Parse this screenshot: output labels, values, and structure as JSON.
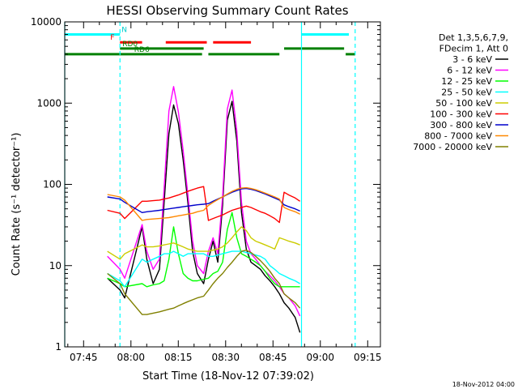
{
  "chart_data": {
    "type": "line",
    "title": "HESSI Observing Summary Count Rates",
    "xlabel": "Start Time (18-Nov-12 07:39:02)",
    "ylabel": "Count Rate (s⁻¹ detector⁻¹)",
    "x_unit": "minutes after 07:39:02",
    "xlim": [
      0,
      100
    ],
    "ylim": [
      1,
      10000
    ],
    "yscale": "log",
    "x_tick_labels": [
      "07:45",
      "08:00",
      "08:15",
      "08:30",
      "08:45",
      "09:00",
      "09:15"
    ],
    "y_tick_labels": [
      "1",
      "10",
      "100",
      "1000",
      "10000"
    ],
    "legend": {
      "placement": "right",
      "header": [
        "Det 1,3,5,6,7,9,",
        "FDecim 1, Att 0"
      ]
    },
    "footer_stamp": "18-Nov-2012 04:00",
    "flag_bars": [
      {
        "label": "N",
        "color": "#00ffff",
        "y": 7000,
        "segments": [
          [
            0,
            17.5
          ],
          [
            75,
            90
          ]
        ]
      },
      {
        "label": "F",
        "color": "#ff0000",
        "y": 5600,
        "segments": [
          [
            17.5,
            24.5
          ],
          [
            32,
            45
          ],
          [
            47,
            59
          ]
        ]
      },
      {
        "label": "RD0",
        "color": "#008000",
        "y": 4700,
        "segments": [
          [
            17.5,
            44
          ],
          [
            69.5,
            88.5
          ]
        ]
      },
      {
        "label": "RD6",
        "color": "#008000",
        "y": 4000,
        "segments": [
          [
            0,
            43.5
          ],
          [
            45.5,
            68
          ],
          [
            89,
            92
          ]
        ]
      }
    ],
    "vertical_lines": [
      {
        "x": 0,
        "style": "solid",
        "color": "#00ffff"
      },
      {
        "x": 17.5,
        "style": "dashed",
        "color": "#00ffff"
      },
      {
        "x": 75,
        "style": "solid",
        "color": "#00ffff"
      },
      {
        "x": 92,
        "style": "dashed",
        "color": "#00ffff"
      }
    ],
    "series": [
      {
        "name": "3 - 6 keV",
        "color": "#000000",
        "x": [
          13.5,
          17.5,
          19,
          24.5,
          26,
          28,
          30,
          31.5,
          33,
          34.5,
          36,
          37.5,
          39,
          40.5,
          42,
          44,
          45.5,
          47,
          48.5,
          50,
          51.5,
          53,
          54.5,
          56,
          57.5,
          59,
          60.5,
          62,
          63.5,
          65,
          66.5,
          68,
          69.5,
          71,
          73,
          74.5
        ],
        "values": [
          7,
          5,
          4,
          30,
          12,
          6,
          9,
          60,
          420,
          950,
          560,
          200,
          60,
          15,
          8,
          6,
          12,
          20,
          11,
          55,
          620,
          1050,
          340,
          45,
          16,
          11,
          10,
          9,
          7.5,
          6.5,
          5.5,
          4.5,
          3.5,
          3,
          2.3,
          1.5
        ]
      },
      {
        "name": "6 - 12 keV",
        "color": "#ff00ff",
        "x": [
          13.5,
          17.5,
          19,
          24.5,
          26,
          28,
          30,
          31.5,
          33,
          34.5,
          36,
          37.5,
          39,
          40.5,
          42,
          44,
          45.5,
          47,
          48.5,
          50,
          51.5,
          53,
          54.5,
          56,
          57.5,
          59,
          60.5,
          62,
          63.5,
          65,
          66.5,
          68,
          69.5,
          71,
          73,
          74.5
        ],
        "values": [
          13,
          9,
          7,
          32,
          15,
          9,
          12,
          90,
          800,
          1600,
          780,
          260,
          75,
          20,
          10,
          8,
          15,
          22,
          14,
          70,
          850,
          1450,
          450,
          60,
          20,
          14,
          12,
          10,
          8.5,
          7.5,
          6.5,
          5.5,
          4.5,
          4,
          3.2,
          2.4
        ]
      },
      {
        "name": "12 - 25 keV",
        "color": "#00ff00",
        "x": [
          13.5,
          17.5,
          19,
          24.5,
          26,
          28,
          30,
          31.5,
          33,
          34.5,
          36,
          37.5,
          39,
          40.5,
          42,
          44,
          45.5,
          47,
          48.5,
          50,
          51.5,
          53,
          54.5,
          56,
          57.5,
          59,
          60.5,
          62,
          63.5,
          65,
          66.5,
          68,
          69.5,
          71,
          73,
          74.5
        ],
        "values": [
          7,
          6,
          5.5,
          6,
          5.5,
          5.8,
          6,
          6.5,
          12,
          30,
          14,
          8,
          7,
          6.5,
          6.5,
          6.8,
          7,
          8,
          8.5,
          11,
          28,
          45,
          22,
          14,
          13,
          12,
          11,
          10,
          8.5,
          7,
          6,
          5.5,
          5.5,
          5.5,
          5.5,
          5.5
        ]
      },
      {
        "name": "25 - 50 keV",
        "color": "#00ffff",
        "x": [
          13.5,
          17.5,
          19,
          24.5,
          26,
          28,
          30,
          31.5,
          33,
          34.5,
          36,
          37.5,
          39,
          40.5,
          42,
          44,
          45.5,
          47,
          48.5,
          50,
          51.5,
          53,
          54.5,
          56,
          57.5,
          59,
          60.5,
          62,
          63.5,
          65,
          66.5,
          68,
          69.5,
          71,
          73,
          74.5
        ],
        "values": [
          8,
          6.5,
          5.5,
          12,
          11,
          12,
          13,
          14,
          14,
          15,
          14,
          13,
          14,
          14,
          14,
          14,
          13,
          13,
          13.5,
          14,
          14.5,
          15,
          15,
          15,
          14.5,
          14,
          13.5,
          13,
          12,
          10,
          9,
          8,
          7.5,
          7,
          6.5,
          6
        ]
      },
      {
        "name": "50 - 100 keV",
        "color": "#cccc00",
        "x": [
          13.5,
          17.5,
          19,
          24.5,
          26,
          28,
          30,
          31.5,
          33,
          34.5,
          36,
          37.5,
          39,
          40.5,
          42,
          44,
          45.5,
          47,
          48.5,
          50,
          51.5,
          53,
          54.5,
          56,
          57.5,
          59,
          60.5,
          62,
          63.5,
          65,
          66.5,
          68,
          69.5,
          71,
          73,
          74.5
        ],
        "values": [
          15,
          12,
          14,
          18,
          17,
          17,
          17.5,
          18,
          18.5,
          19,
          18,
          17,
          16,
          15.5,
          15,
          15,
          15,
          15.5,
          16,
          17,
          19,
          22,
          26,
          30,
          27,
          22,
          20,
          19,
          18,
          17,
          16,
          22,
          21,
          20,
          19,
          18
        ]
      },
      {
        "name": "100 - 300 keV",
        "color": "#ff0000",
        "x": [
          13.5,
          17.5,
          19,
          24.5,
          26,
          28,
          30,
          31.5,
          33,
          34.5,
          36,
          37.5,
          39,
          40.5,
          42,
          44,
          45.5,
          47,
          48.5,
          50,
          51.5,
          53,
          54.5,
          56,
          57.5,
          59,
          60.5,
          62,
          63.5,
          65,
          66.5,
          68,
          69.5,
          71,
          73,
          74.5
        ],
        "values": [
          48,
          44,
          38,
          62,
          62,
          63,
          64,
          66,
          68,
          71,
          74,
          78,
          82,
          86,
          90,
          94,
          36,
          38,
          40,
          42,
          45,
          48,
          50,
          52,
          54,
          52,
          49,
          46,
          44,
          41,
          38,
          34,
          80,
          74,
          68,
          62
        ]
      },
      {
        "name": "300 - 800 keV",
        "color": "#0000cc",
        "x": [
          13.5,
          17.5,
          19,
          24.5,
          26,
          28,
          30,
          31.5,
          33,
          34.5,
          36,
          37.5,
          39,
          40.5,
          42,
          44,
          45.5,
          47,
          48.5,
          50,
          51.5,
          53,
          54.5,
          56,
          57.5,
          59,
          60.5,
          62,
          63.5,
          65,
          66.5,
          68,
          69.5,
          71,
          73,
          74.5
        ],
        "values": [
          70,
          66,
          60,
          45,
          46,
          47,
          48,
          49,
          50,
          51,
          52,
          53,
          54,
          55,
          56,
          57,
          58,
          62,
          66,
          70,
          75,
          80,
          84,
          88,
          89,
          87,
          84,
          80,
          76,
          72,
          68,
          64,
          56,
          53,
          50,
          47
        ]
      },
      {
        "name": "800 - 7000 keV",
        "color": "#ff8800",
        "x": [
          13.5,
          17.5,
          19,
          24.5,
          26,
          28,
          30,
          31.5,
          33,
          34.5,
          36,
          37.5,
          39,
          40.5,
          42,
          44,
          45.5,
          47,
          48.5,
          50,
          51.5,
          53,
          54.5,
          56,
          57.5,
          59,
          60.5,
          62,
          63.5,
          65,
          66.5,
          68,
          69.5,
          71,
          73,
          74.5
        ],
        "values": [
          75,
          70,
          64,
          36,
          37,
          37.5,
          38,
          38.5,
          39,
          40,
          41,
          42,
          43,
          44,
          46,
          48,
          55,
          60,
          65,
          70,
          76,
          82,
          87,
          90,
          91,
          89,
          86,
          82,
          78,
          74,
          70,
          66,
          52,
          49,
          46,
          43
        ]
      },
      {
        "name": "7000 - 20000 keV",
        "color": "#808000",
        "x": [
          13.5,
          17.5,
          19,
          24.5,
          26,
          28,
          30,
          31.5,
          33,
          34.5,
          36,
          37.5,
          39,
          40.5,
          42,
          44,
          45.5,
          47,
          48.5,
          50,
          51.5,
          53,
          54.5,
          56,
          57.5,
          59,
          60.5,
          62,
          63.5,
          65,
          66.5,
          68,
          69.5,
          71,
          73,
          74.5
        ],
        "values": [
          8,
          6,
          4.5,
          2.5,
          2.5,
          2.6,
          2.7,
          2.8,
          2.9,
          3,
          3.2,
          3.4,
          3.6,
          3.8,
          4,
          4.2,
          5,
          6,
          7,
          8,
          9.5,
          11,
          13,
          15,
          15.5,
          14.5,
          13,
          11.5,
          10,
          8.5,
          7,
          6,
          4.5,
          4,
          3.5,
          3
        ]
      }
    ]
  }
}
